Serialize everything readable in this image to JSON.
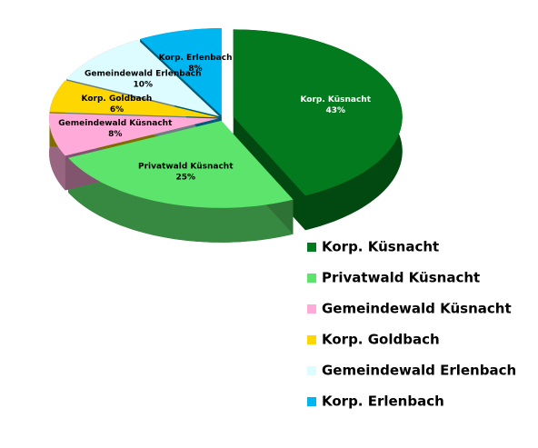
{
  "chart_data": {
    "type": "pie",
    "categories": [
      "Korp. Küsnacht",
      "Privatwald Küsnacht",
      "Gemeindewald Küsnacht",
      "Korp. Goldbach",
      "Gemeindewald Erlenbach",
      "Korp. Erlenbach"
    ],
    "values": [
      43,
      25,
      8,
      6,
      10,
      8
    ],
    "value_labels": [
      "43%",
      "25%",
      "8%",
      "6%",
      "10%",
      "8%"
    ],
    "colors": [
      "#037a1d",
      "#5ce46c",
      "#ffaad9",
      "#ffd700",
      "#dcfcff",
      "#00b6f0"
    ],
    "legend": "bottom-right"
  }
}
